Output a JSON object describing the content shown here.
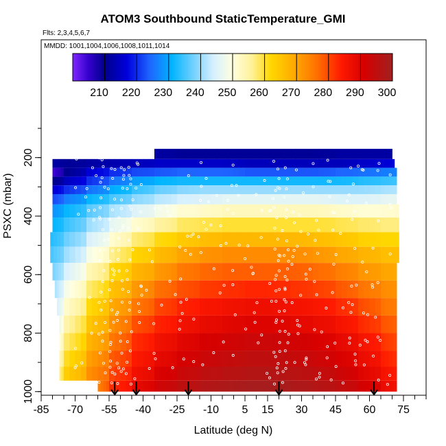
{
  "title": "ATOM3 Southbound StaticTemperature_GMI",
  "flights_note": "Flts: 2,3,4,5,6,7",
  "dates_note": "MMDD: 1001,1004,1006,1008,1011,1014",
  "chart_data": {
    "type": "heatmap",
    "title": "ATOM3 Southbound StaticTemperature_GMI",
    "xlabel": "Latitude (deg N)",
    "ylabel": "PSXC (mbar)",
    "xlim": [
      -85,
      85
    ],
    "ylim": [
      1000,
      60
    ],
    "y_inverted": true,
    "x_ticks": [
      -85,
      -70,
      -55,
      -40,
      -25,
      -10,
      5,
      15,
      30,
      45,
      60,
      75
    ],
    "y_ticks": [
      200,
      400,
      600,
      800,
      1000
    ],
    "colorbar": {
      "min": 200,
      "max": 300,
      "ticks": [
        210,
        220,
        230,
        240,
        250,
        260,
        270,
        280,
        290,
        300
      ],
      "stops": [
        {
          "v": 200,
          "c": "#7f27ff"
        },
        {
          "v": 205,
          "c": "#3300cc"
        },
        {
          "v": 210,
          "c": "#00008b"
        },
        {
          "v": 217,
          "c": "#0000dd"
        },
        {
          "v": 224,
          "c": "#1e64ff"
        },
        {
          "v": 231,
          "c": "#00b4ff"
        },
        {
          "v": 238,
          "c": "#77d2ff"
        },
        {
          "v": 244,
          "c": "#d6f0ff"
        },
        {
          "v": 250,
          "c": "#ffffe0"
        },
        {
          "v": 256,
          "c": "#fff199"
        },
        {
          "v": 262,
          "c": "#ffd700"
        },
        {
          "v": 270,
          "c": "#ffa500"
        },
        {
          "v": 277,
          "c": "#ff6a00"
        },
        {
          "v": 284,
          "c": "#ff1a00"
        },
        {
          "v": 291,
          "c": "#d70000"
        },
        {
          "v": 300,
          "c": "#a12020"
        }
      ]
    },
    "flight_arrows_lat": [
      -52.5,
      -43,
      -20,
      20,
      62
    ],
    "pressure_layers": [
      {
        "p": 190,
        "lat_min": -56,
        "lat_max": 70,
        "v": [
          null,
          null,
          null,
          null,
          null,
          212,
          211,
          211,
          211,
          211,
          211,
          211,
          211,
          212,
          212,
          212,
          212
        ]
      },
      {
        "p": 220,
        "lat_min": -80,
        "lat_max": 71,
        "v": [
          212,
          211,
          212,
          213,
          214,
          215,
          215,
          215,
          215,
          214,
          214,
          214,
          214,
          214,
          215,
          216,
          217
        ]
      },
      {
        "p": 250,
        "lat_min": -80,
        "lat_max": 72,
        "v": [
          204,
          210,
          216,
          220,
          222,
          223,
          224,
          224,
          224,
          223,
          223,
          223,
          223,
          224,
          225,
          226,
          227
        ]
      },
      {
        "p": 280,
        "lat_min": -80,
        "lat_max": 72,
        "v": [
          210,
          214,
          220,
          225,
          229,
          231,
          232,
          232,
          232,
          232,
          232,
          232,
          232,
          232,
          233,
          234,
          235
        ]
      },
      {
        "p": 310,
        "lat_min": -80,
        "lat_max": 72,
        "v": [
          216,
          220,
          225,
          230,
          234,
          237,
          239,
          240,
          240,
          240,
          240,
          240,
          240,
          240,
          240,
          241,
          242
        ]
      },
      {
        "p": 340,
        "lat_min": -80,
        "lat_max": 72,
        "v": [
          222,
          226,
          231,
          235,
          239,
          242,
          244,
          245,
          246,
          246,
          246,
          246,
          246,
          245,
          245,
          246,
          247
        ]
      },
      {
        "p": 380,
        "lat_min": -80,
        "lat_max": 73,
        "v": [
          228,
          231,
          236,
          241,
          245,
          248,
          251,
          252,
          253,
          253,
          253,
          253,
          253,
          252,
          251,
          251,
          252
        ]
      },
      {
        "p": 430,
        "lat_min": -80,
        "lat_max": 73,
        "v": [
          231,
          234,
          240,
          246,
          251,
          255,
          258,
          259,
          260,
          260,
          260,
          260,
          260,
          259,
          258,
          257,
          257
        ]
      },
      {
        "p": 480,
        "lat_min": -81,
        "lat_max": 73,
        "v": [
          233,
          237,
          244,
          251,
          257,
          261,
          264,
          266,
          267,
          267,
          267,
          267,
          266,
          265,
          263,
          262,
          262
        ]
      },
      {
        "p": 530,
        "lat_min": -81,
        "lat_max": 73,
        "v": [
          235,
          240,
          248,
          256,
          262,
          266,
          270,
          272,
          273,
          273,
          273,
          273,
          272,
          270,
          268,
          266,
          266
        ]
      },
      {
        "p": 590,
        "lat_min": -80,
        "lat_max": 72,
        "v": [
          238,
          244,
          253,
          261,
          267,
          271,
          275,
          277,
          278,
          278,
          278,
          278,
          277,
          275,
          272,
          270,
          269
        ]
      },
      {
        "p": 650,
        "lat_min": -79,
        "lat_max": 72,
        "v": [
          241,
          248,
          257,
          265,
          271,
          276,
          279,
          281,
          282,
          283,
          283,
          282,
          281,
          279,
          276,
          273,
          272
        ]
      },
      {
        "p": 710,
        "lat_min": -78,
        "lat_max": 72,
        "v": [
          244,
          251,
          261,
          269,
          275,
          280,
          283,
          285,
          286,
          287,
          287,
          286,
          285,
          283,
          280,
          276,
          274
        ]
      },
      {
        "p": 770,
        "lat_min": -77,
        "lat_max": 72,
        "v": [
          247,
          254,
          264,
          272,
          279,
          283,
          286,
          288,
          289,
          290,
          290,
          289,
          288,
          286,
          283,
          279,
          277
        ]
      },
      {
        "p": 830,
        "lat_min": -77,
        "lat_max": 72,
        "v": [
          250,
          257,
          267,
          275,
          282,
          286,
          289,
          291,
          292,
          293,
          293,
          292,
          291,
          289,
          286,
          282,
          279
        ]
      },
      {
        "p": 890,
        "lat_min": -77,
        "lat_max": 72,
        "v": [
          253,
          260,
          270,
          278,
          284,
          288,
          291,
          293,
          294,
          295,
          295,
          294,
          293,
          291,
          288,
          284,
          281
        ]
      },
      {
        "p": 940,
        "lat_min": -77,
        "lat_max": 72,
        "v": [
          256,
          263,
          272,
          280,
          286,
          290,
          293,
          295,
          296,
          297,
          297,
          296,
          295,
          293,
          290,
          286,
          283
        ]
      },
      {
        "p": 985,
        "lat_min": -60,
        "lat_max": 72,
        "v": [
          null,
          null,
          274,
          282,
          288,
          292,
          295,
          297,
          298,
          299,
          299,
          298,
          297,
          295,
          292,
          288,
          285
        ]
      }
    ]
  }
}
